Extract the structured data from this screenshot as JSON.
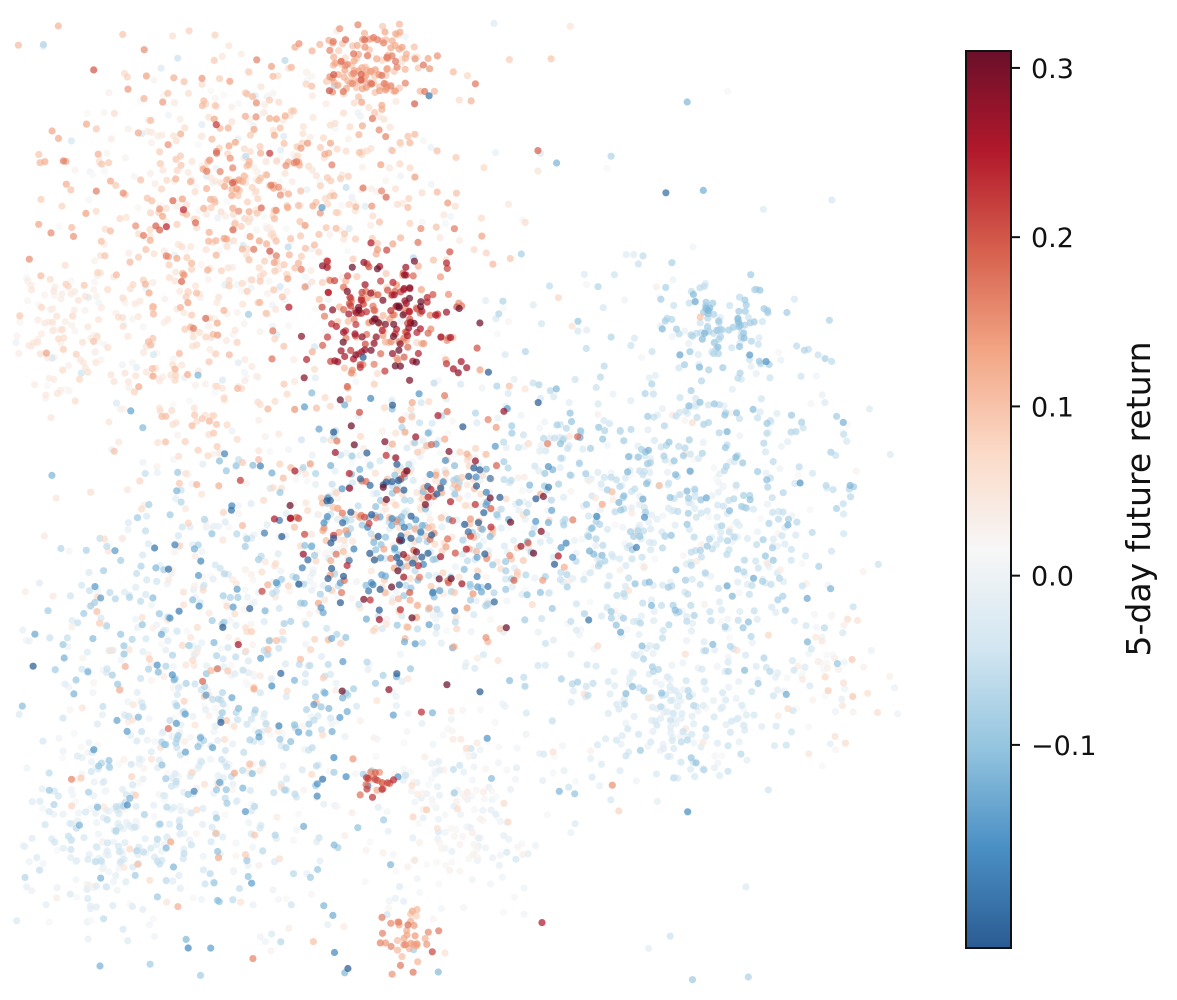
{
  "chart_data": {
    "type": "scatter",
    "title": "",
    "xlabel": "",
    "ylabel": "",
    "axes_visible": false,
    "grid": false,
    "colormap": "RdBu_r",
    "colormap_stops": [
      "#2a5c93",
      "#4a8fc4",
      "#93c4df",
      "#d2e6f1",
      "#f7f7f7",
      "#fbd9c6",
      "#f2a584",
      "#d6604d",
      "#b2182b",
      "#6b0f2a"
    ],
    "point_alpha": 0.72,
    "colorbar": {
      "label": "5-day future return",
      "vmin": -0.22,
      "vmax": 0.31,
      "ticks": [
        {
          "value": 0.3,
          "label": "0.3"
        },
        {
          "value": 0.2,
          "label": "0.2"
        },
        {
          "value": 0.1,
          "label": "0.1"
        },
        {
          "value": 0.0,
          "label": "0.0"
        },
        {
          "value": -0.1,
          "label": "−0.1"
        }
      ]
    },
    "xlim": [
      0,
      100
    ],
    "ylim": [
      0,
      100
    ],
    "clusters": [
      {
        "name": "top-orange-cluster",
        "cx": 40,
        "cy": 95,
        "sx": 3.2,
        "sy": 2.2,
        "n": 140,
        "mean": 0.13,
        "sd": 0.03
      },
      {
        "name": "upper-left-light-red",
        "cx": 27,
        "cy": 82,
        "sx": 11,
        "sy": 8,
        "n": 700,
        "mean": 0.08,
        "sd": 0.05
      },
      {
        "name": "upper-red-core",
        "cx": 42,
        "cy": 69,
        "sx": 4.5,
        "sy": 3.2,
        "n": 220,
        "mean": 0.22,
        "sd": 0.07
      },
      {
        "name": "central-mixed-core",
        "cx": 45,
        "cy": 48,
        "sx": 7.5,
        "sy": 6.5,
        "n": 650,
        "mean": 0.0,
        "sd": 0.16
      },
      {
        "name": "right-light-blue",
        "cx": 74,
        "cy": 50,
        "sx": 11,
        "sy": 10,
        "n": 750,
        "mean": -0.05,
        "sd": 0.04
      },
      {
        "name": "right-upper-blue-patch",
        "cx": 80,
        "cy": 69,
        "sx": 3,
        "sy": 2,
        "n": 80,
        "mean": -0.08,
        "sd": 0.02
      },
      {
        "name": "lower-left-mixed",
        "cx": 22,
        "cy": 30,
        "sx": 10,
        "sy": 12,
        "n": 850,
        "mean": -0.03,
        "sd": 0.07
      },
      {
        "name": "left-pale-blob",
        "cx": 6,
        "cy": 68,
        "sx": 4,
        "sy": 4,
        "n": 120,
        "mean": 0.04,
        "sd": 0.02
      },
      {
        "name": "left-mid-pale-red",
        "cx": 20,
        "cy": 64,
        "sx": 5,
        "sy": 6,
        "n": 160,
        "mean": 0.06,
        "sd": 0.03
      },
      {
        "name": "lower-center-pale",
        "cx": 50,
        "cy": 18,
        "sx": 5,
        "sy": 5,
        "n": 160,
        "mean": 0.01,
        "sd": 0.02
      },
      {
        "name": "bottom-red-patch",
        "cx": 41,
        "cy": 21,
        "sx": 1,
        "sy": 1,
        "n": 20,
        "mean": 0.18,
        "sd": 0.03
      },
      {
        "name": "bottom-orange-patch",
        "cx": 44,
        "cy": 5,
        "sx": 1.6,
        "sy": 1.6,
        "n": 40,
        "mean": 0.13,
        "sd": 0.03
      },
      {
        "name": "lower-right-pale-blue",
        "cx": 75,
        "cy": 28,
        "sx": 6,
        "sy": 4,
        "n": 200,
        "mean": -0.03,
        "sd": 0.02
      },
      {
        "name": "right-edge-pale",
        "cx": 92,
        "cy": 33,
        "sx": 3,
        "sy": 3,
        "n": 50,
        "mean": 0.03,
        "sd": 0.03
      },
      {
        "name": "bottom-left-pale-blue",
        "cx": 11,
        "cy": 15,
        "sx": 6,
        "sy": 5,
        "n": 200,
        "mean": -0.02,
        "sd": 0.02
      },
      {
        "name": "scattered-background",
        "cx": 45,
        "cy": 50,
        "sx": 24,
        "sy": 26,
        "n": 380,
        "mean": 0.0,
        "sd": 0.07
      }
    ]
  }
}
